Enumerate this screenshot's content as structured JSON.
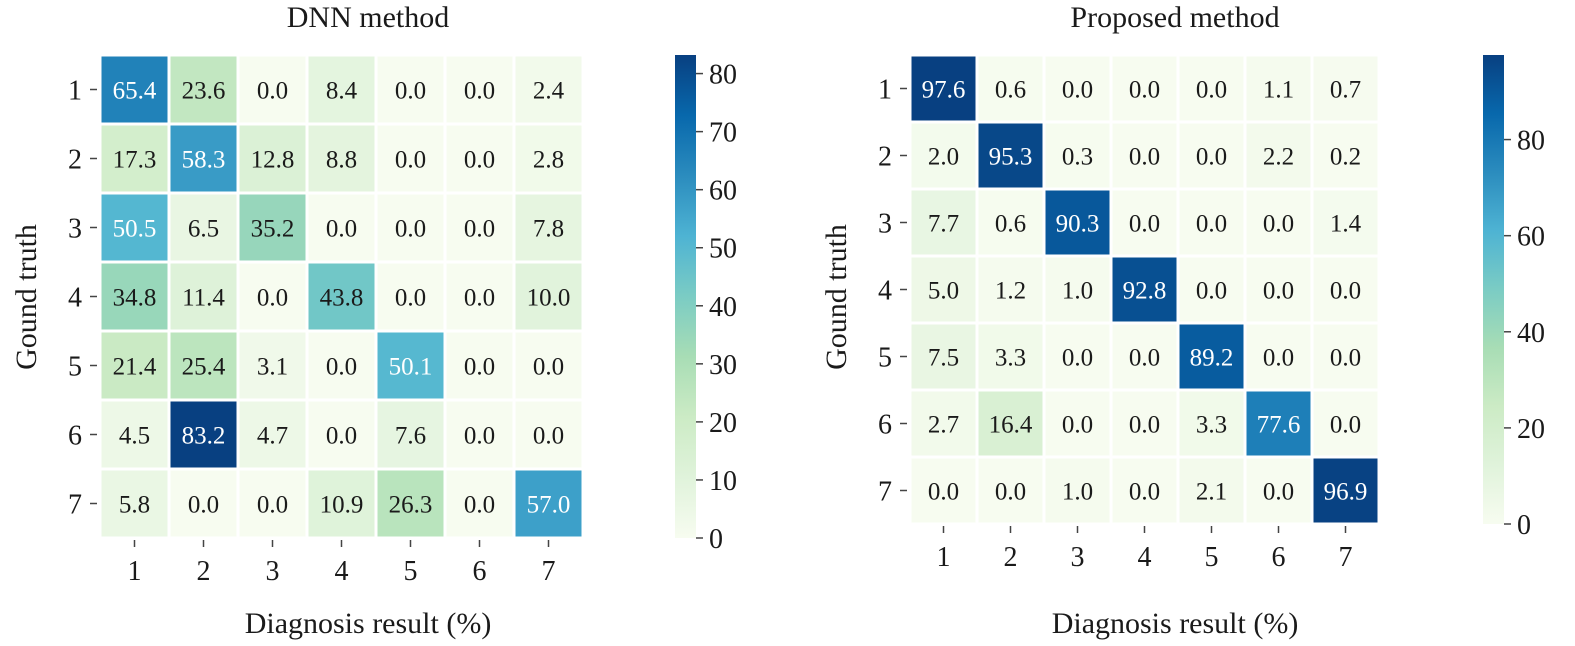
{
  "chart_data": [
    {
      "type": "heatmap",
      "title": "DNN method",
      "xlabel": "Diagnosis result (%)",
      "ylabel": "Gound truth",
      "x_categories": [
        "1",
        "2",
        "3",
        "4",
        "5",
        "6",
        "7"
      ],
      "y_categories": [
        "1",
        "2",
        "3",
        "4",
        "5",
        "6",
        "7"
      ],
      "values": [
        [
          65.4,
          23.6,
          0.0,
          8.4,
          0.0,
          0.0,
          2.4
        ],
        [
          17.3,
          58.3,
          12.8,
          8.8,
          0.0,
          0.0,
          2.8
        ],
        [
          50.5,
          6.5,
          35.2,
          0.0,
          0.0,
          0.0,
          7.8
        ],
        [
          34.8,
          11.4,
          0.0,
          43.8,
          0.0,
          0.0,
          10.0
        ],
        [
          21.4,
          25.4,
          3.1,
          0.0,
          50.1,
          0.0,
          0.0
        ],
        [
          4.5,
          83.2,
          4.7,
          0.0,
          7.6,
          0.0,
          0.0
        ],
        [
          5.8,
          0.0,
          0.0,
          10.9,
          26.3,
          0.0,
          57.0
        ]
      ],
      "colorbar": {
        "range": [
          0,
          83.2
        ],
        "ticks": [
          0,
          10,
          20,
          30,
          40,
          50,
          60,
          70,
          80
        ],
        "colormap": "GnBu"
      }
    },
    {
      "type": "heatmap",
      "title": "Proposed method",
      "xlabel": "Diagnosis result (%)",
      "ylabel": "Gound truth",
      "x_categories": [
        "1",
        "2",
        "3",
        "4",
        "5",
        "6",
        "7"
      ],
      "y_categories": [
        "1",
        "2",
        "3",
        "4",
        "5",
        "6",
        "7"
      ],
      "values": [
        [
          97.6,
          0.6,
          0.0,
          0.0,
          0.0,
          1.1,
          0.7
        ],
        [
          2.0,
          95.3,
          0.3,
          0.0,
          0.0,
          2.2,
          0.2
        ],
        [
          7.7,
          0.6,
          90.3,
          0.0,
          0.0,
          0.0,
          1.4
        ],
        [
          5.0,
          1.2,
          1.0,
          92.8,
          0.0,
          0.0,
          0.0
        ],
        [
          7.5,
          3.3,
          0.0,
          0.0,
          89.2,
          0.0,
          0.0
        ],
        [
          2.7,
          16.4,
          0.0,
          0.0,
          3.3,
          77.6,
          0.0
        ],
        [
          0.0,
          0.0,
          1.0,
          0.0,
          2.1,
          0.0,
          96.9
        ]
      ],
      "colorbar": {
        "range": [
          0,
          97.6
        ],
        "ticks": [
          0,
          20,
          40,
          60,
          80
        ],
        "colormap": "GnBu"
      }
    }
  ],
  "colors": {
    "colormap_stops": [
      "#f7fcf0",
      "#e0f3db",
      "#ccebc5",
      "#a8ddb5",
      "#7bccc4",
      "#4eb3d3",
      "#2b8cbe",
      "#0868ac",
      "#084081"
    ],
    "cell_gap": "#ffffff",
    "text_dark": "#1a1a1a",
    "text_light": "#ffffff"
  }
}
